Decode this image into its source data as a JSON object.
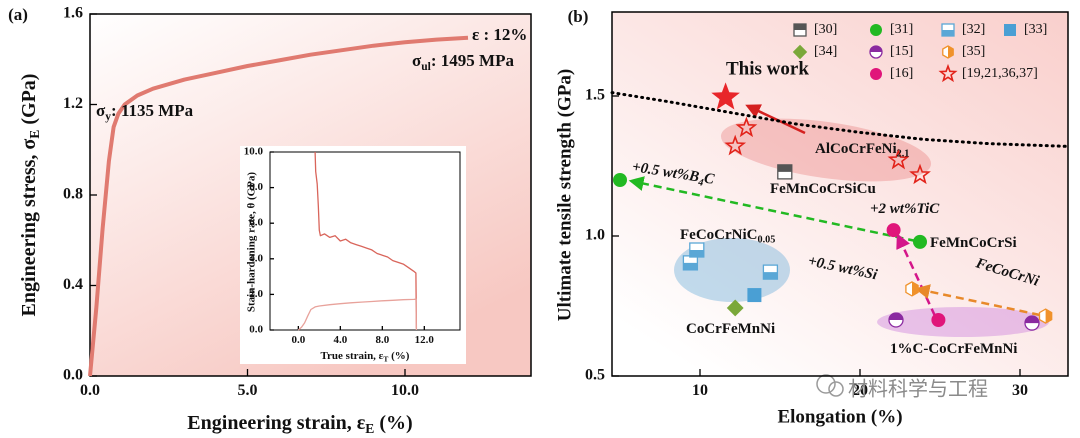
{
  "chart_data": [
    {
      "type": "line",
      "panel_label": "(a)",
      "x_label": {
        "text": "Engineering strain, ε",
        "sub": "E",
        "rest": " (%)"
      },
      "y_label": {
        "text": "Engineering stress, σ",
        "sub": "E",
        "rest": " (GPa)"
      },
      "xlim": [
        0,
        14
      ],
      "ylim": [
        0,
        1.6
      ],
      "xticks": [
        {
          "value": 0,
          "label": "0.0"
        },
        {
          "value": 5,
          "label": "5.0"
        },
        {
          "value": 10,
          "label": "10.0"
        }
      ],
      "yticks": [
        {
          "value": 0,
          "label": "0.0"
        },
        0.4,
        0.8,
        1.2,
        1.6
      ],
      "series": [
        {
          "color": "#e07a70",
          "x": [
            0,
            0.2,
            0.4,
            0.6,
            0.75,
            0.9,
            1.1,
            1.5,
            2,
            3,
            4,
            5,
            6,
            7,
            8,
            9,
            10,
            11,
            12
          ],
          "values": [
            0,
            0.3,
            0.65,
            0.95,
            1.1,
            1.16,
            1.2,
            1.24,
            1.27,
            1.31,
            1.34,
            1.37,
            1.395,
            1.42,
            1.44,
            1.46,
            1.475,
            1.487,
            1.495
          ]
        }
      ],
      "annotations": [
        {
          "text": "ε : 12%",
          "color": "#111"
        },
        {
          "text": "σ",
          "sub": "ul",
          "rest": ": 1495 MPa",
          "color": "#111"
        },
        {
          "text": "σ",
          "sub": "y",
          "rest": ": 1135 MPa",
          "color": "#111"
        }
      ]
    },
    {
      "type": "line",
      "x_label": {
        "text": "True strain, ε",
        "sub": "T",
        "rest": " (%)"
      },
      "y_label": "Stain-hardening rate, θ (GPa)",
      "xlim": [
        -2.7,
        15.4
      ],
      "ylim": [
        0,
        10
      ],
      "xticks": [
        {
          "value": 0,
          "label": "0.0"
        },
        {
          "value": 4,
          "label": "4.0"
        },
        {
          "value": 8,
          "label": "8.0"
        },
        {
          "value": 12,
          "label": "12.0"
        }
      ],
      "yticks": [
        {
          "value": 0,
          "label": "0.0"
        },
        {
          "value": 2,
          "label": "2.0"
        },
        {
          "value": 4,
          "label": "4.0"
        },
        {
          "value": 6,
          "label": "6.0"
        },
        {
          "value": 8,
          "label": "8.0"
        },
        {
          "value": 10,
          "label": "10.0"
        }
      ],
      "series": [
        {
          "color": "#d9655b",
          "x": [
            1.6,
            1.65,
            1.8,
            1.9,
            2.0,
            2.1,
            2.5,
            3,
            3.5,
            4,
            4.5,
            5,
            5.5,
            6,
            6.5,
            7,
            7.5,
            8,
            8.5,
            9,
            9.5,
            10,
            10.5,
            11,
            11.2,
            11.25
          ],
          "values": [
            10,
            8.9,
            8.2,
            7.0,
            5.6,
            5.3,
            5.4,
            5.2,
            5.3,
            5.0,
            5.1,
            4.9,
            4.8,
            4.7,
            4.6,
            4.5,
            4.3,
            4.2,
            4.1,
            3.9,
            3.8,
            3.7,
            3.5,
            3.3,
            3.2,
            0.1
          ]
        },
        {
          "color": "#e8a29b",
          "x": [
            0,
            0.3,
            0.6,
            0.9,
            1.2,
            1.6,
            2,
            3,
            4,
            5,
            6,
            7,
            8,
            9,
            10,
            11,
            11.2,
            11.25
          ],
          "values": [
            0,
            0.15,
            0.4,
            0.8,
            1.15,
            1.3,
            1.35,
            1.42,
            1.48,
            1.53,
            1.57,
            1.6,
            1.64,
            1.67,
            1.7,
            1.72,
            1.73,
            0
          ]
        }
      ]
    },
    {
      "type": "scatter",
      "panel_label": "(b)",
      "x_label": "Elongation (%)",
      "y_label": "Ultimate tensile strength (GPa)",
      "xlim": [
        4.5,
        33
      ],
      "ylim": [
        0.5,
        1.8
      ],
      "xticks": [
        10,
        20,
        30
      ],
      "yticks": [
        0.5,
        {
          "value": 1,
          "label": "1.0"
        },
        1.5
      ],
      "trend": {
        "x": [
          4.5,
          8,
          12,
          16,
          20,
          24,
          28,
          33
        ],
        "values": [
          1.512,
          1.48,
          1.44,
          1.4,
          1.37,
          1.345,
          1.33,
          1.32
        ]
      },
      "highlight": {
        "name": "This work",
        "color": "#e8262a",
        "x": 11.6,
        "value": 1.495
      },
      "series": [
        {
          "name": "[30]",
          "marker": "half-square-top",
          "color": "#555555",
          "x": [
            15.3
          ],
          "values": [
            1.229
          ]
        },
        {
          "name": "[31]",
          "marker": "circle",
          "color": "#22b922",
          "x": [
            5,
            23.75
          ],
          "values": [
            1.2,
            0.979
          ]
        },
        {
          "name": "[32]",
          "marker": "half-square-bottom",
          "color": "#5aa7d6",
          "x": [
            9.4,
            9.8,
            14.4
          ],
          "values": [
            0.904,
            0.95,
            0.871
          ]
        },
        {
          "name": "[33]",
          "marker": "square",
          "color": "#4a9fd4",
          "x": [
            13.4
          ],
          "values": [
            0.789
          ]
        },
        {
          "name": "[34]",
          "marker": "diamond",
          "color": "#7aa83a",
          "x": [
            12.2
          ],
          "values": [
            0.743
          ]
        },
        {
          "name": "[15]",
          "marker": "half-circle-top",
          "color": "#8a2aa0",
          "x": [
            22.25,
            30.75
          ],
          "values": [
            0.7,
            0.689
          ]
        },
        {
          "name": "[35]",
          "marker": "half-hexagon-right",
          "color": "#f0922b",
          "x": [
            23.25,
            31.6
          ],
          "values": [
            0.811,
            0.714
          ]
        },
        {
          "name": "[16]",
          "marker": "circle",
          "color": "#e0157a",
          "x": [
            22.1,
            24.9
          ],
          "values": [
            1.021,
            0.7
          ]
        },
        {
          "name": "[19,21,36,37]",
          "marker": "star-open",
          "color": "#e2231a",
          "x": [
            12.9,
            12.2,
            22.4,
            23.75
          ],
          "values": [
            1.386,
            1.321,
            1.271,
            1.218
          ]
        }
      ],
      "annotations": [
        {
          "text": "AlCoCrFeNi",
          "sub": "2.1",
          "color": "#d42020"
        },
        {
          "text": "FeMnCoCrSiCu",
          "color": "#222"
        },
        {
          "text": "+0.5 wt%B",
          "sub": "4",
          "rest": "C",
          "color": "#22b922"
        },
        {
          "text": "+2 wt%TiC",
          "color": "#d4168a"
        },
        {
          "text": "FeMnCoCrSi",
          "color": "#22a022"
        },
        {
          "text": "FeCoCrNiC",
          "sub": "0.05",
          "color": "#6fb0dc"
        },
        {
          "text": "+0.5 wt%Si",
          "color": "#e8892a"
        },
        {
          "text": "FeCoCrNi",
          "color": "#e8892a"
        },
        {
          "text": "CoCrFeMnNi",
          "color": "#5f9e2a"
        },
        {
          "text": "1%C-CoCrFeMnNi",
          "color": "#8a2aa0"
        }
      ],
      "watermark": "材料科学与工程"
    }
  ]
}
